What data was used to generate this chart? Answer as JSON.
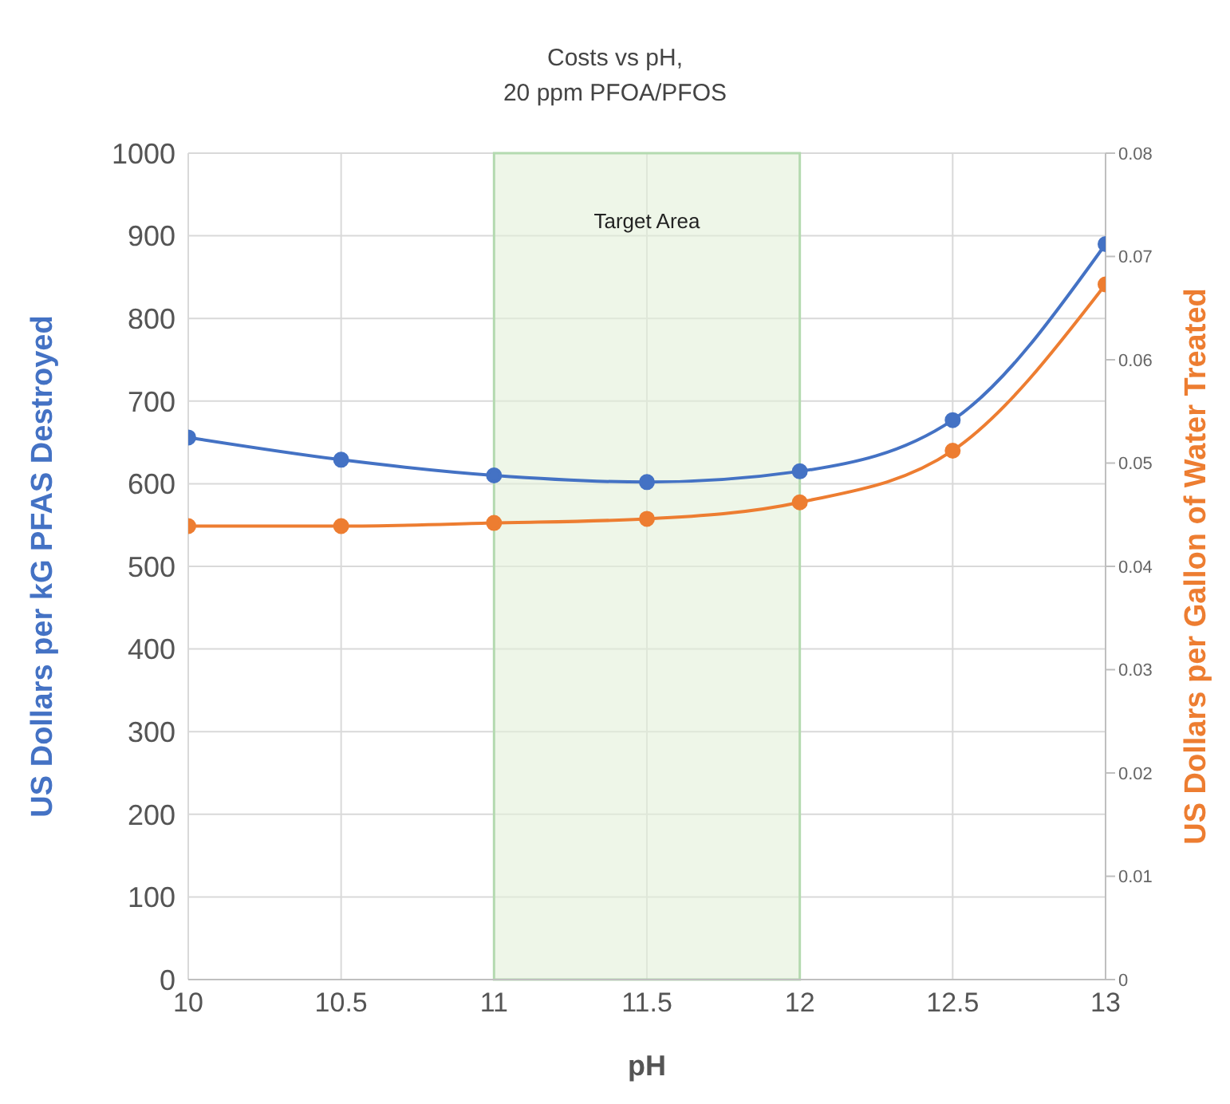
{
  "chart_data": {
    "type": "line",
    "title": "Costs vs pH,\n20 ppm PFOA/PFOS",
    "xlabel": "pH",
    "ylabel": "US Dollars per kG PFAS Destroyed",
    "y2label": "US Dollars per Gallon of Water Treated",
    "x": [
      10,
      10.5,
      11,
      11.5,
      12,
      12.5,
      13
    ],
    "series": [
      {
        "color": "#4472c4",
        "values": [
          656,
          629,
          610,
          602,
          615,
          677,
          890
        ]
      },
      {
        "color": "#ed7d31",
        "axis": "y2",
        "values": [
          0.0439,
          0.0439,
          0.0442,
          0.0446,
          0.0462,
          0.0512,
          0.0673
        ]
      }
    ],
    "xlim": [
      10,
      13
    ],
    "xticks": [
      10,
      10.5,
      11,
      11.5,
      12,
      12.5,
      13
    ],
    "ylim": [
      0,
      1000
    ],
    "yticks": [
      0,
      100,
      200,
      300,
      400,
      500,
      600,
      700,
      800,
      900,
      1000
    ],
    "y2lim": [
      0,
      0.08
    ],
    "y2ticks": [
      0,
      0.01,
      0.02,
      0.03,
      0.04,
      0.05,
      0.06,
      0.07,
      0.08
    ],
    "bands": [
      {
        "axis": "x",
        "from": 11,
        "to": 12,
        "label": "Target Area",
        "color": "#e2f0d9"
      }
    ],
    "grid": true,
    "marker": "circle",
    "line_style": "solid",
    "legend": false
  }
}
